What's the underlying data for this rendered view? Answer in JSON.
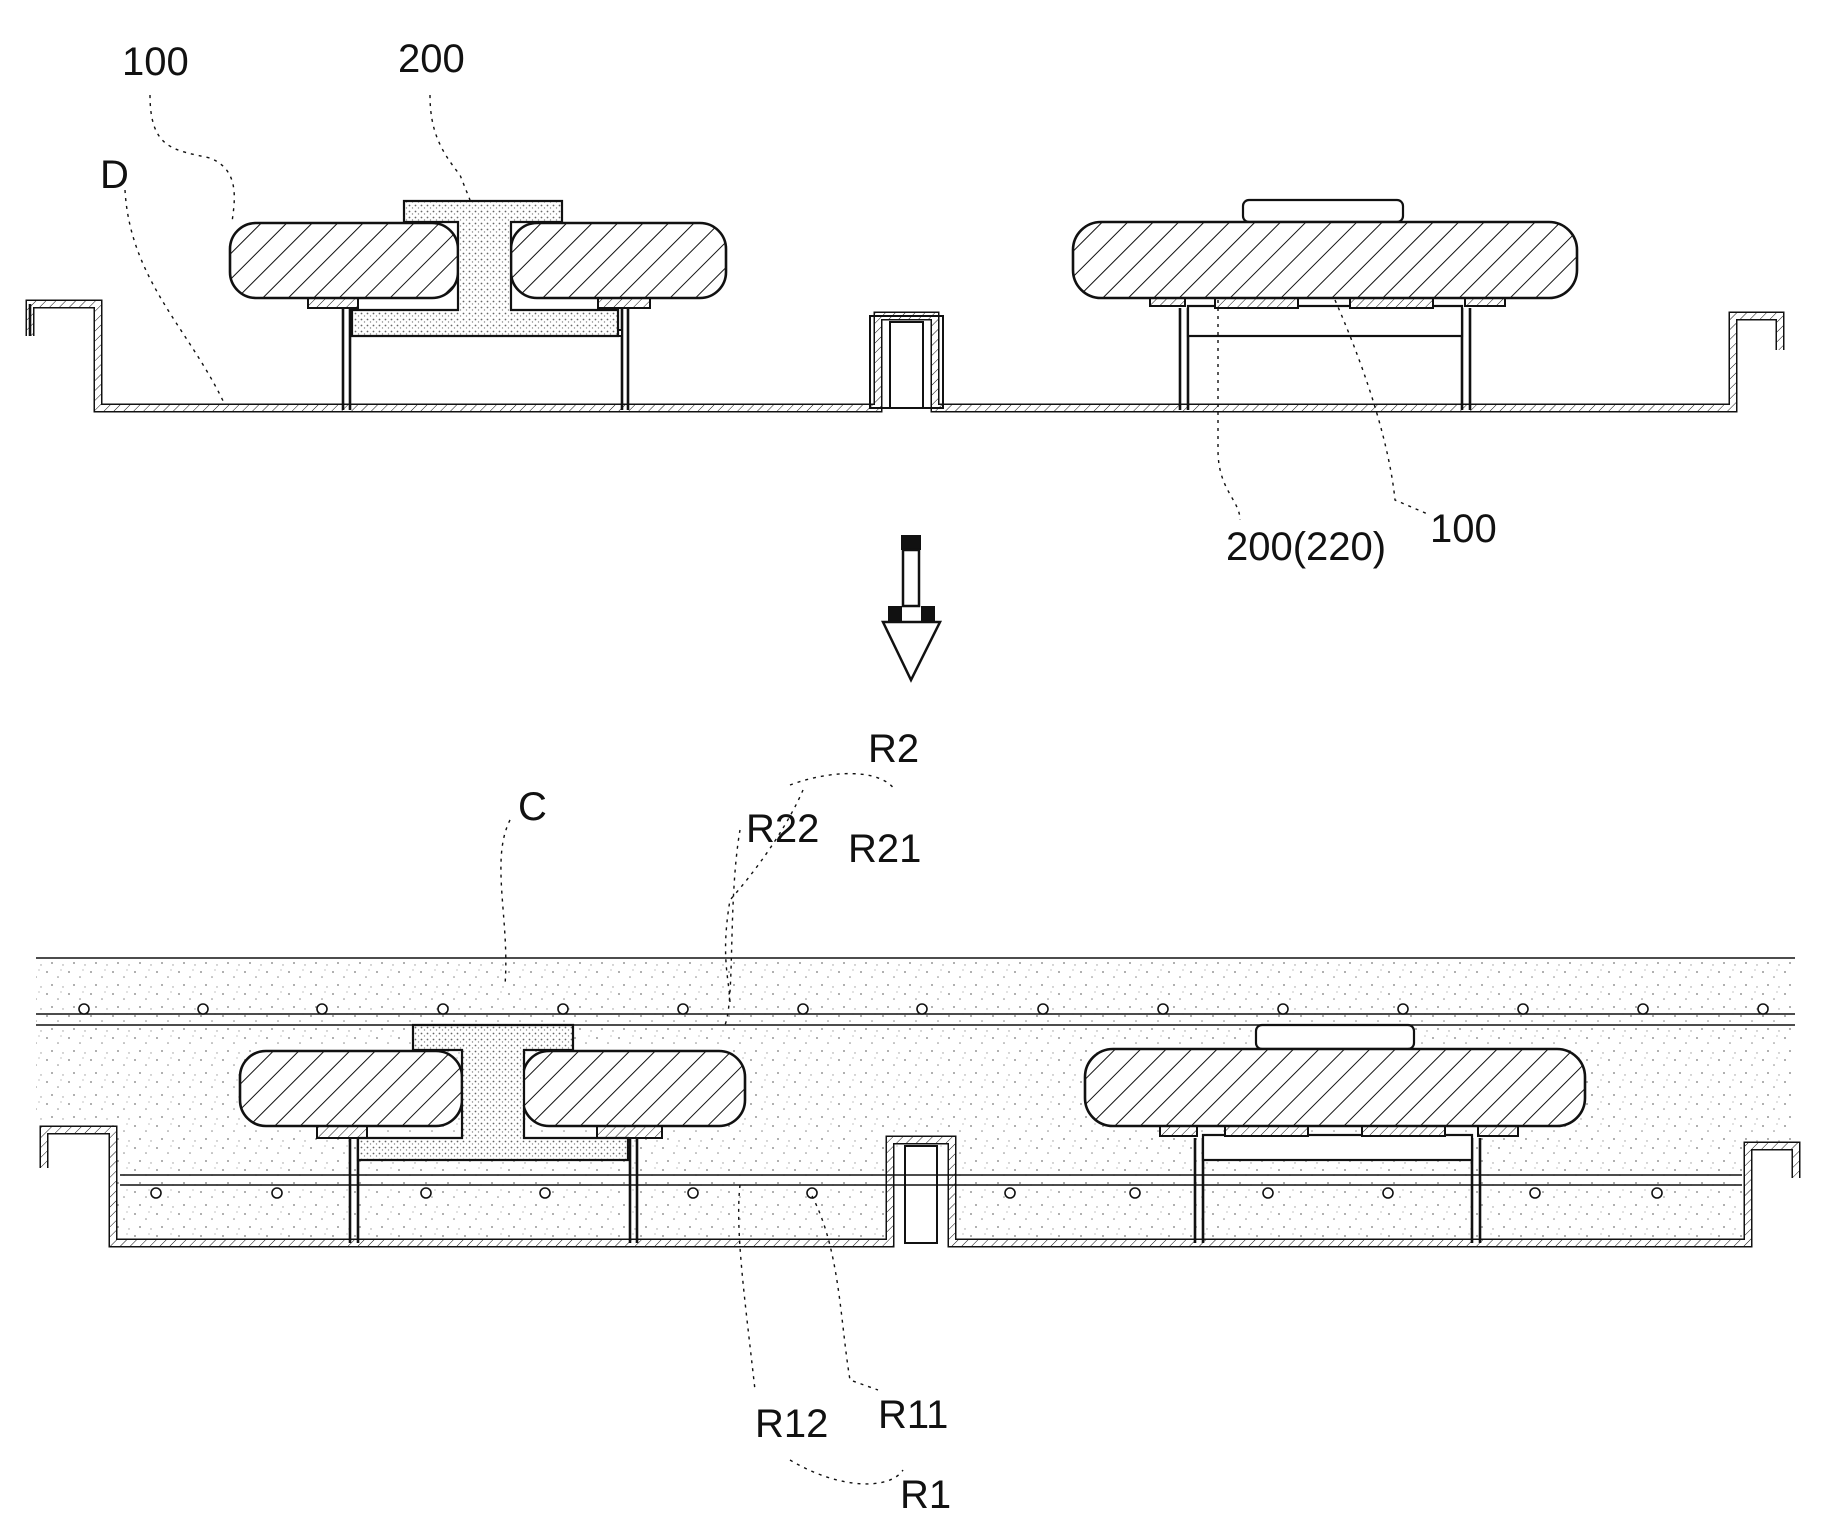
{
  "labels": {
    "top_panel_100_left": "100",
    "top_bolt_200": "200",
    "deck_D": "D",
    "top_right_200_220": "200(220)",
    "top_right_100": "100",
    "concrete_C": "C",
    "rebar_R2": "R2",
    "rebar_R22": "R22",
    "rebar_R21": "R21",
    "rebar_R12": "R12",
    "rebar_R11": "R11",
    "rebar_R1": "R1"
  },
  "colors": {
    "ink": "#111111",
    "paper": "#ffffff",
    "speckle": "#bdbdbd"
  },
  "icons": {
    "process_arrow": "down-arrow-icon"
  }
}
